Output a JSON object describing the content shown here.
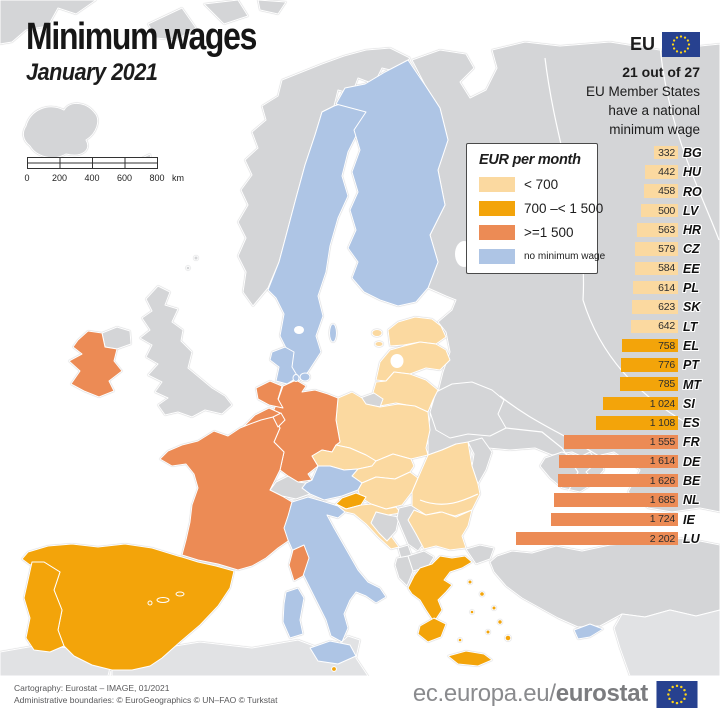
{
  "title": "Minimum wages",
  "subtitle": "January 2021",
  "eu_badge": {
    "label": "EU",
    "note_bold": "21 out of 27",
    "note_lines": [
      "EU Member States",
      "have a national",
      "minimum wage"
    ]
  },
  "legend": {
    "title": "EUR per month",
    "items": [
      {
        "label": "< 700",
        "tier": "lt700"
      },
      {
        "label": "700 –< 1 500",
        "tier": "700to1500"
      },
      {
        "label": ">=1 500",
        "tier": "gte1500"
      },
      {
        "label": "no minimum wage",
        "tier": "none"
      }
    ]
  },
  "scale_bar": {
    "ticks": [
      "0",
      "200",
      "400",
      "600",
      "800"
    ],
    "unit": "km"
  },
  "colors": {
    "lt700": "#fbd9a0",
    "700to1500": "#f3a40a",
    "gte1500": "#ec8b55",
    "none": "#aec5e5",
    "non_eu": "#d4d5d7",
    "non_eu_light": "#e1e2e4",
    "sea": "#ffffff",
    "flag_blue": "#27418f",
    "flag_star": "#ffd617"
  },
  "chart_data": {
    "type": "bar",
    "orientation": "horizontal",
    "value_unit": "EUR per month",
    "xlim": [
      0,
      2202
    ],
    "categories": [
      "BG",
      "HU",
      "RO",
      "LV",
      "HR",
      "CZ",
      "EE",
      "PL",
      "SK",
      "LT",
      "EL",
      "PT",
      "MT",
      "SI",
      "ES",
      "FR",
      "DE",
      "BE",
      "NL",
      "IE",
      "LU"
    ],
    "bars": [
      {
        "code": "BG",
        "value": 332,
        "display": "332",
        "tier": "lt700"
      },
      {
        "code": "HU",
        "value": 442,
        "display": "442",
        "tier": "lt700"
      },
      {
        "code": "RO",
        "value": 458,
        "display": "458",
        "tier": "lt700"
      },
      {
        "code": "LV",
        "value": 500,
        "display": "500",
        "tier": "lt700"
      },
      {
        "code": "HR",
        "value": 563,
        "display": "563",
        "tier": "lt700"
      },
      {
        "code": "CZ",
        "value": 579,
        "display": "579",
        "tier": "lt700"
      },
      {
        "code": "EE",
        "value": 584,
        "display": "584",
        "tier": "lt700"
      },
      {
        "code": "PL",
        "value": 614,
        "display": "614",
        "tier": "lt700"
      },
      {
        "code": "SK",
        "value": 623,
        "display": "623",
        "tier": "lt700"
      },
      {
        "code": "LT",
        "value": 642,
        "display": "642",
        "tier": "lt700"
      },
      {
        "code": "EL",
        "value": 758,
        "display": "758",
        "tier": "700to1500"
      },
      {
        "code": "PT",
        "value": 776,
        "display": "776",
        "tier": "700to1500"
      },
      {
        "code": "MT",
        "value": 785,
        "display": "785",
        "tier": "700to1500"
      },
      {
        "code": "SI",
        "value": 1024,
        "display": "1 024",
        "tier": "700to1500"
      },
      {
        "code": "ES",
        "value": 1108,
        "display": "1 108",
        "tier": "700to1500"
      },
      {
        "code": "FR",
        "value": 1555,
        "display": "1 555",
        "tier": "gte1500"
      },
      {
        "code": "DE",
        "value": 1614,
        "display": "1 614",
        "tier": "gte1500"
      },
      {
        "code": "BE",
        "value": 1626,
        "display": "1 626",
        "tier": "gte1500"
      },
      {
        "code": "NL",
        "value": 1685,
        "display": "1 685",
        "tier": "gte1500"
      },
      {
        "code": "IE",
        "value": 1724,
        "display": "1 724",
        "tier": "gte1500"
      },
      {
        "code": "LU",
        "value": 2202,
        "display": "2 202",
        "tier": "gte1500"
      }
    ]
  },
  "map": {
    "countries": {
      "IS": "non_eu",
      "NO": "non_eu",
      "SE": "none",
      "FI": "none",
      "DK": "none",
      "EE": "lt700",
      "LV": "lt700",
      "LT": "lt700",
      "RU": "non_eu",
      "BY": "non_eu",
      "MD": "non_eu",
      "PL": "lt700",
      "DE": "gte1500",
      "NL": "gte1500",
      "BE": "gte1500",
      "LU": "gte1500",
      "FR": "gte1500",
      "GB": "non_eu",
      "IE": "gte1500",
      "CZ": "lt700",
      "SK": "lt700",
      "AT": "none",
      "CH": "non_eu",
      "HU": "lt700",
      "SI": "700to1500",
      "HR": "lt700",
      "BA": "non_eu",
      "RS": "non_eu",
      "ME": "non_eu",
      "AL": "non_eu",
      "MK": "non_eu",
      "RO": "lt700",
      "BG": "lt700",
      "EL": "700to1500",
      "TR": "non_eu",
      "CY": "none",
      "IT": "none",
      "ES": "700to1500",
      "PT": "700to1500",
      "MT": "700to1500",
      "XME": "non_eu_light",
      "XAF": "non_eu_light",
      "XGL": "non_eu",
      "XSJ": "non_eu",
      "FO": "non_eu"
    }
  },
  "footer": {
    "credit1": "Cartography: Eurostat – IMAGE, 01/2021",
    "credit2": "Administrative boundaries: © EuroGeographics © UN–FAO © Turkstat",
    "url_regular": "ec.europa.eu/",
    "url_bold": "eurostat"
  }
}
